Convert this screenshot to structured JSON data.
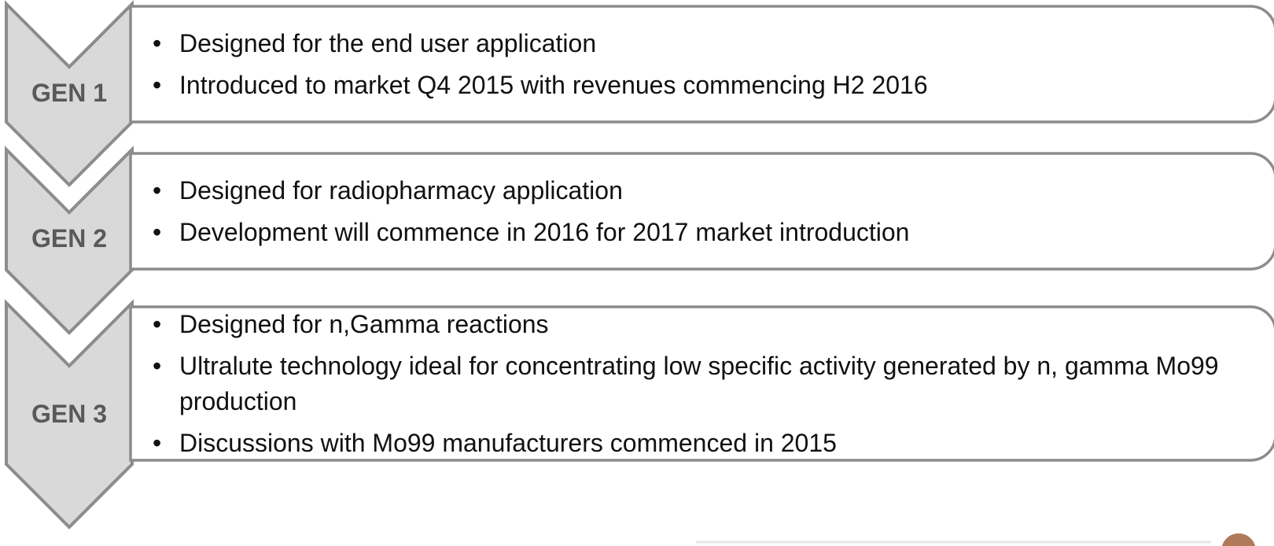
{
  "items": [
    {
      "label": "GEN 1",
      "bullets": [
        "Designed for the end user application",
        "Introduced to market Q4 2015 with revenues commencing H2 2016"
      ]
    },
    {
      "label": "GEN 2",
      "bullets": [
        "Designed for radiopharmacy application",
        "Development will commence in 2016 for 2017 market introduction"
      ]
    },
    {
      "label": "GEN 3",
      "bullets": [
        "Designed for n,Gamma reactions",
        "Ultralute technology ideal for concentrating low specific activity generated by n, gamma Mo99 production",
        "Discussions with Mo99 manufacturers commenced in 2015"
      ]
    }
  ]
}
